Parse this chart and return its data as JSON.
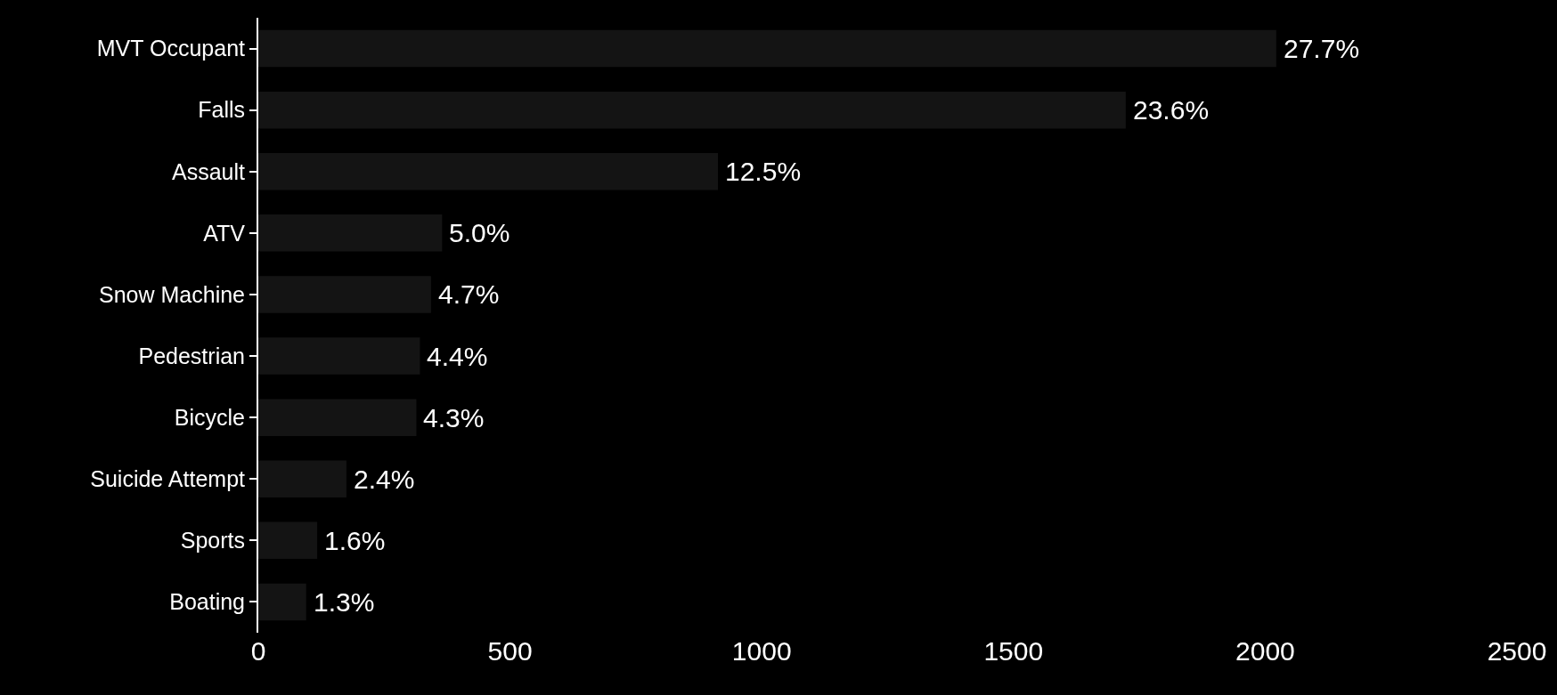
{
  "chart_data": {
    "type": "bar",
    "orientation": "horizontal",
    "categories": [
      "MVT Occupant",
      "Falls",
      "Assault",
      "ATV",
      "Snow Machine",
      "Pedestrian",
      "Bicycle",
      "Suicide Attempt",
      "Sports",
      "Boating"
    ],
    "values": [
      2022,
      1723,
      913,
      365,
      343,
      321,
      314,
      175,
      117,
      95
    ],
    "annotations": [
      {
        "text": "27.7%",
        "x": 2022,
        "y": "MVT Occupant"
      },
      {
        "text": "23.6%",
        "x": 1723,
        "y": "Falls"
      },
      {
        "text": "12.5%",
        "x": 913,
        "y": "Assault"
      },
      {
        "text": "5.0%",
        "x": 365,
        "y": "ATV"
      },
      {
        "text": "4.7%",
        "x": 343,
        "y": "Snow Machine"
      },
      {
        "text": "4.4%",
        "x": 321,
        "y": "Pedestrian"
      },
      {
        "text": "4.3%",
        "x": 314,
        "y": "Bicycle"
      },
      {
        "text": "2.4%",
        "x": 175,
        "y": "Suicide Attempt"
      },
      {
        "text": "1.6%",
        "x": 117,
        "y": "Sports"
      },
      {
        "text": "1.3%",
        "x": 95,
        "y": "Boating"
      }
    ],
    "color": "#141414",
    "xlim": [
      0,
      2500
    ],
    "xticks": [
      0,
      500,
      1000,
      1500,
      2000,
      2500
    ],
    "grid": false,
    "legend": false
  }
}
